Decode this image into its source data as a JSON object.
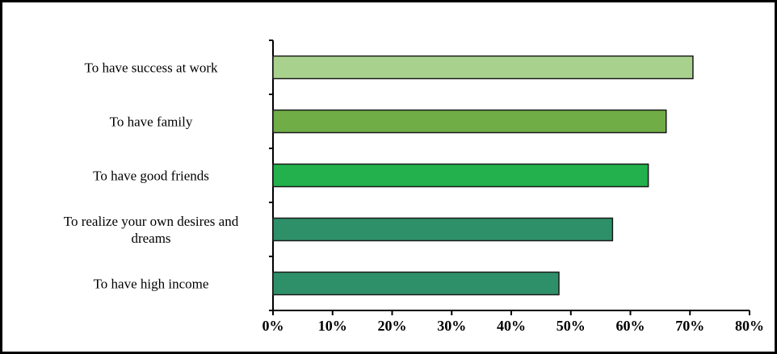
{
  "chart_data": {
    "type": "barh",
    "categories": [
      "To have success at work",
      "To have family",
      "To have good friends",
      "To realize your own desires and dreams",
      "To have high income"
    ],
    "values": [
      70.5,
      66,
      63,
      57,
      48
    ],
    "colors": [
      "#a9d18e",
      "#70ad47",
      "#22b14c",
      "#2e9068",
      "#2e9068"
    ],
    "xlim": [
      0,
      80
    ],
    "xticks": [
      {
        "value": 0,
        "label": "0%"
      },
      {
        "value": 10,
        "label": "10%"
      },
      {
        "value": 20,
        "label": "20%"
      },
      {
        "value": 30,
        "label": "30%"
      },
      {
        "value": 40,
        "label": "40%"
      },
      {
        "value": 50,
        "label": "50%"
      },
      {
        "value": 60,
        "label": "60%"
      },
      {
        "value": 70,
        "label": "70%"
      },
      {
        "value": 80,
        "label": "80%"
      }
    ]
  }
}
